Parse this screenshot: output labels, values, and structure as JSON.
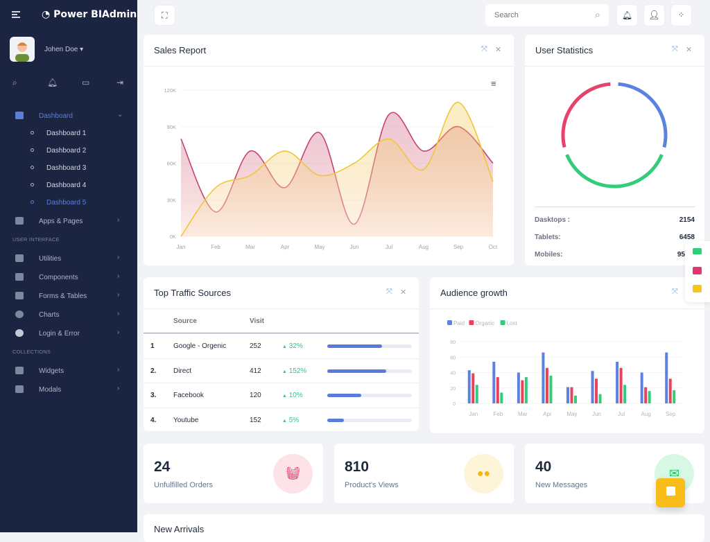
{
  "sidebar": {
    "brand": "Power BIAdmin",
    "user": "Johen Doe",
    "menu_label": "Dashboard",
    "dashboards": [
      "Dashboard 1",
      "Dashboard 2",
      "Dashboard 3",
      "Dashboard 4",
      "Dashboard 5"
    ],
    "apps": "Apps & Pages",
    "section_ui": "USER INTERFACE",
    "ui_items": [
      "Utilities",
      "Components",
      "Forms & Tables",
      "Charts",
      "Login & Error"
    ],
    "section_collections": "COLLECTIONS",
    "collection_items": [
      "Widgets",
      "Modals"
    ],
    "accent": "#5c7fdc"
  },
  "topbar": {
    "search_placeholder": "Search"
  },
  "sales": {
    "title": "Sales Report"
  },
  "user_stats": {
    "title": "User Statistics",
    "rows": [
      {
        "k": "Dasktops :",
        "v": "2154"
      },
      {
        "k": "Tablets:",
        "v": "6458"
      },
      {
        "k": "Mobiles:",
        "v": "95"
      }
    ]
  },
  "traffic": {
    "title": "Top Traffic Sources",
    "headers": [
      "Source",
      "Visit"
    ],
    "rows": [
      {
        "n": "1",
        "source": "Google - Orgenic",
        "visit": "252",
        "change": "32%",
        "progress": 65
      },
      {
        "n": "2.",
        "source": "Direct",
        "visit": "412",
        "change": "152%",
        "progress": 70
      },
      {
        "n": "3.",
        "source": "Facebook",
        "visit": "120",
        "change": "10%",
        "progress": 40
      },
      {
        "n": "4.",
        "source": "Youtube",
        "visit": "152",
        "change": "5%",
        "progress": 20
      }
    ]
  },
  "audience": {
    "title": "Audience growth"
  },
  "stats": [
    {
      "value": "24",
      "label": "Unfulfilled Orders",
      "color": "#e8336b",
      "bg": "#fde2e8"
    },
    {
      "value": "810",
      "label": "Product's Views",
      "color": "#f5b60b",
      "bg": "#fef4d8"
    },
    {
      "value": "40",
      "label": "New Messages",
      "color": "#22c55e",
      "bg": "#d8f8e6"
    }
  ],
  "new_arrivals": {
    "title": "New Arrivals"
  },
  "chart_data": [
    {
      "type": "area",
      "categories": [
        "Jan",
        "Feb",
        "Mar",
        "Apr",
        "May",
        "Jun",
        "Jul",
        "Aug",
        "Sep",
        "Oct"
      ],
      "yticks": [
        "0K",
        "30K",
        "60K",
        "90K",
        "120K"
      ],
      "ylim": [
        0,
        120000
      ],
      "grid": true,
      "series": [
        {
          "color": "#c8436e",
          "values": [
            80000,
            20000,
            70000,
            40000,
            85000,
            10000,
            100000,
            70000,
            90000,
            60000
          ]
        },
        {
          "color": "#f0c53a",
          "values": [
            0,
            40000,
            50000,
            70000,
            50000,
            60000,
            80000,
            55000,
            110000,
            45000
          ]
        }
      ]
    },
    {
      "type": "pie",
      "variant": "donut",
      "segments": [
        {
          "color": "#5b82e0",
          "share": 0.3
        },
        {
          "color": "#34cc7a",
          "share": 0.4
        },
        {
          "color": "#e8426b",
          "share": 0.3
        }
      ]
    },
    {
      "type": "bar",
      "categories": [
        "Jan",
        "Feb",
        "Mar",
        "Apr",
        "May",
        "Jun",
        "Jul",
        "Aug",
        "Sep"
      ],
      "ylim": [
        0,
        80
      ],
      "yticks": [
        "0",
        "20",
        "40",
        "60",
        "80"
      ],
      "legend": "top-left",
      "series": [
        {
          "name": "Paid",
          "color": "#5b82e0",
          "values": [
            43,
            54,
            40,
            66,
            21,
            42,
            54,
            40,
            66
          ]
        },
        {
          "name": "Organic",
          "color": "#e8435a",
          "values": [
            39,
            34,
            30,
            46,
            21,
            32,
            46,
            21,
            32
          ]
        },
        {
          "name": "Lost",
          "color": "#34cc7a",
          "values": [
            24,
            14,
            34,
            36,
            10,
            12,
            24,
            16,
            17
          ]
        }
      ]
    }
  ]
}
